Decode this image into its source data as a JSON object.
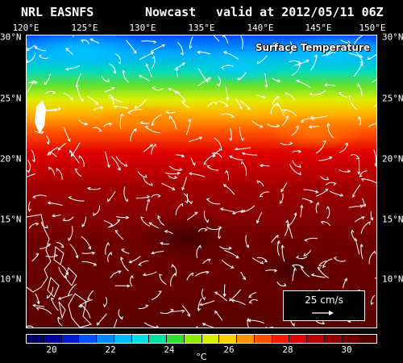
{
  "header": {
    "model_label": "NRL EASNFS",
    "run_type": "Nowcast",
    "valid_time": "valid at 2012/05/11 06Z"
  },
  "map": {
    "field_title": "Surface Temperature",
    "lon_ticks": [
      "120°E",
      "125°E",
      "130°E",
      "135°E",
      "140°E",
      "145°E",
      "150°E"
    ],
    "lat_ticks": [
      "30°N",
      "25°N",
      "20°N",
      "15°N",
      "10°N"
    ],
    "extent": {
      "lon": [
        120,
        150
      ],
      "lat": [
        5,
        30
      ]
    },
    "field_style": "sea surface temperature shading with white current streamlines",
    "land_color": "#ffffff"
  },
  "scale_key": {
    "label": "25 cm/s",
    "arrow_icon": "arrow-right-icon"
  },
  "colorbar": {
    "tick_labels": [
      "20",
      "22",
      "24",
      "26",
      "28",
      "30"
    ],
    "unit": "°C",
    "colors": [
      "#000066",
      "#0000a0",
      "#0018d0",
      "#0050ff",
      "#0088ff",
      "#00bbff",
      "#00e0e8",
      "#00e0a0",
      "#30e030",
      "#90ee00",
      "#d8ee00",
      "#ffd000",
      "#ff9000",
      "#ff5000",
      "#ff1800",
      "#e00000",
      "#b80000",
      "#900000",
      "#700000",
      "#500000"
    ]
  }
}
